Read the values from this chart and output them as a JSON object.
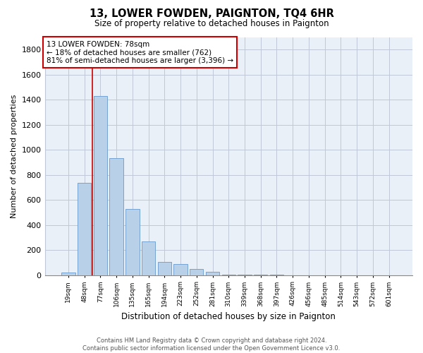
{
  "title": "13, LOWER FOWDEN, PAIGNTON, TQ4 6HR",
  "subtitle": "Size of property relative to detached houses in Paignton",
  "xlabel": "Distribution of detached houses by size in Paignton",
  "ylabel": "Number of detached properties",
  "bar_labels": [
    "19sqm",
    "48sqm",
    "77sqm",
    "106sqm",
    "135sqm",
    "165sqm",
    "194sqm",
    "223sqm",
    "252sqm",
    "281sqm",
    "310sqm",
    "339sqm",
    "368sqm",
    "397sqm",
    "426sqm",
    "456sqm",
    "485sqm",
    "514sqm",
    "543sqm",
    "572sqm",
    "601sqm"
  ],
  "bar_values": [
    22,
    735,
    1430,
    935,
    530,
    270,
    103,
    90,
    48,
    25,
    5,
    3,
    1,
    1,
    0,
    0,
    0,
    0,
    0,
    0,
    0
  ],
  "bar_color": "#b8d0e8",
  "bar_edge_color": "#6699cc",
  "annotation_title": "13 LOWER FOWDEN: 78sqm",
  "annotation_line1": "← 18% of detached houses are smaller (762)",
  "annotation_line2": "81% of semi-detached houses are larger (3,396) →",
  "annotation_box_color": "#ffffff",
  "annotation_box_edge": "#cc0000",
  "redline_color": "#cc0000",
  "redline_x": 1.5,
  "ylim": [
    0,
    1900
  ],
  "yticks": [
    0,
    200,
    400,
    600,
    800,
    1000,
    1200,
    1400,
    1600,
    1800
  ],
  "plot_bg_color": "#eaf0f8",
  "fig_bg_color": "#ffffff",
  "grid_color": "#c0c8d8",
  "footer_line1": "Contains HM Land Registry data © Crown copyright and database right 2024.",
  "footer_line2": "Contains public sector information licensed under the Open Government Licence v3.0."
}
